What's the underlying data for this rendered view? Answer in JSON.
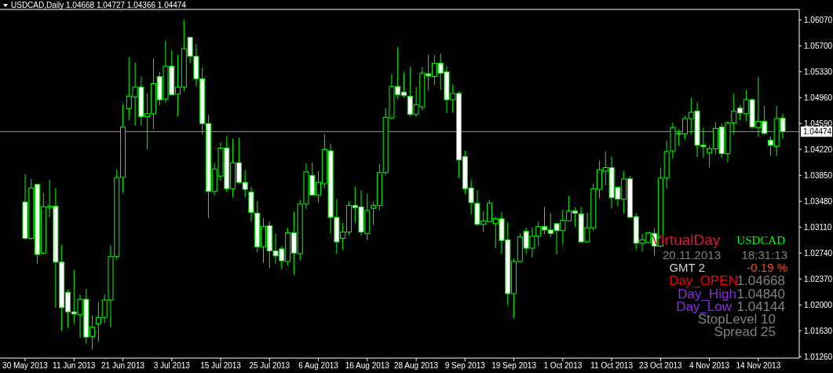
{
  "chart_data": {
    "type": "candlestick",
    "title": "USDCAD,Daily  1.04668 1.04727 1.04366 1.04474",
    "color": "#00ff00",
    "categories": [
      "30 May 2013",
      null,
      null,
      null,
      null,
      null,
      null,
      null,
      "11 Jun 2013",
      null,
      null,
      null,
      null,
      null,
      null,
      null,
      "21 Jun 2013",
      null,
      null,
      null,
      null,
      null,
      null,
      null,
      "3 Jul 2013",
      null,
      null,
      null,
      null,
      null,
      null,
      null,
      "15 Jul 2013",
      null,
      null,
      null,
      null,
      null,
      null,
      null,
      "25 Jul 2013",
      null,
      null,
      null,
      null,
      null,
      null,
      null,
      "6 Aug 2013",
      null,
      null,
      null,
      null,
      null,
      null,
      null,
      "16 Aug 2013",
      null,
      null,
      null,
      null,
      null,
      null,
      null,
      "28 Aug 2013",
      null,
      null,
      null,
      null,
      null,
      null,
      null,
      "9 Sep 2013",
      null,
      null,
      null,
      null,
      null,
      null,
      null,
      "19 Sep 2013",
      null,
      null,
      null,
      null,
      null,
      null,
      null,
      "1 Oct 2013",
      null,
      null,
      null,
      null,
      null,
      null,
      null,
      "11 Oct 2013",
      null,
      null,
      null,
      null,
      null,
      null,
      null,
      "23 Oct 2013",
      null,
      null,
      null,
      null,
      null,
      null,
      null,
      "4 Nov 2013",
      null,
      null,
      null,
      null,
      null,
      null,
      null,
      "14 Nov 2013",
      null,
      null,
      null,
      null
    ],
    "ohlc": [
      [
        1.0347,
        1.0387,
        1.0293,
        1.0295
      ],
      [
        1.0295,
        1.038,
        1.0293,
        1.0367
      ],
      [
        1.0372,
        1.0373,
        1.0259,
        1.0272
      ],
      [
        1.0274,
        1.036,
        1.0272,
        1.034
      ],
      [
        1.0339,
        1.0379,
        1.0325,
        1.0341
      ],
      [
        1.0341,
        1.0367,
        1.0196,
        1.0261
      ],
      [
        1.0261,
        1.0286,
        1.0162,
        1.0196
      ],
      [
        1.0218,
        1.0222,
        1.0167,
        1.019
      ],
      [
        1.019,
        1.025,
        1.0173,
        1.0187
      ],
      [
        1.0186,
        1.0215,
        1.0153,
        1.0208
      ],
      [
        1.0208,
        1.0223,
        1.0145,
        1.0154
      ],
      [
        1.0155,
        1.0185,
        1.0136,
        1.0168
      ],
      [
        1.0173,
        1.0204,
        1.0147,
        1.0182
      ],
      [
        1.0182,
        1.0215,
        1.0174,
        1.0207
      ],
      [
        1.0207,
        1.0285,
        1.0168,
        1.0269
      ],
      [
        1.0269,
        1.0393,
        1.0265,
        1.0382
      ],
      [
        1.0382,
        1.0487,
        1.036,
        1.0454
      ],
      [
        1.048,
        1.0554,
        1.0464,
        1.0498
      ],
      [
        1.0497,
        1.0546,
        1.0456,
        1.0511
      ],
      [
        1.0511,
        1.0526,
        1.0456,
        1.0469
      ],
      [
        1.0469,
        1.0502,
        1.0422,
        1.0473
      ],
      [
        1.0473,
        1.0552,
        1.0451,
        1.0516
      ],
      [
        1.0526,
        1.0533,
        1.0485,
        1.0493
      ],
      [
        1.0494,
        1.0577,
        1.0489,
        1.0541
      ],
      [
        1.0541,
        1.0563,
        1.0499,
        1.05
      ],
      [
        1.0501,
        1.0557,
        1.0469,
        1.0511
      ],
      [
        1.0511,
        1.0607,
        1.0505,
        1.0566
      ],
      [
        1.0582,
        1.0583,
        1.0545,
        1.0555
      ],
      [
        1.0555,
        1.0572,
        1.0512,
        1.0523
      ],
      [
        1.0523,
        1.0539,
        1.0444,
        1.0459
      ],
      [
        1.0459,
        1.0471,
        1.0324,
        1.0362
      ],
      [
        1.0362,
        1.0403,
        1.0356,
        1.0394
      ],
      [
        1.0384,
        1.0432,
        1.0377,
        1.0424
      ],
      [
        1.0424,
        1.0441,
        1.0361,
        1.0366
      ],
      [
        1.0366,
        1.0437,
        1.0354,
        1.0403
      ],
      [
        1.0403,
        1.0439,
        1.0373,
        1.0375
      ],
      [
        1.0375,
        1.0393,
        1.0354,
        1.0365
      ],
      [
        1.0361,
        1.0369,
        1.0319,
        1.0332
      ],
      [
        1.0331,
        1.0348,
        1.0275,
        1.0283
      ],
      [
        1.0283,
        1.0324,
        1.026,
        1.0312
      ],
      [
        1.0313,
        1.0319,
        1.0253,
        1.0277
      ],
      [
        1.0277,
        1.0302,
        1.0259,
        1.027
      ],
      [
        1.028,
        1.0284,
        1.0251,
        1.0263
      ],
      [
        1.0262,
        1.031,
        1.0256,
        1.0303
      ],
      [
        1.0303,
        1.0333,
        1.0244,
        1.0274
      ],
      [
        1.0273,
        1.035,
        1.0263,
        1.0344
      ],
      [
        1.0344,
        1.0402,
        1.0337,
        1.039
      ],
      [
        1.0385,
        1.0403,
        1.0356,
        1.0357
      ],
      [
        1.0357,
        1.0391,
        1.0346,
        1.0375
      ],
      [
        1.0373,
        1.0444,
        1.0366,
        1.0422
      ],
      [
        1.042,
        1.043,
        1.0302,
        1.0325
      ],
      [
        1.0325,
        1.0351,
        1.0273,
        1.029
      ],
      [
        1.0295,
        1.0317,
        1.0279,
        1.0304
      ],
      [
        1.0304,
        1.0348,
        1.03,
        1.0342
      ],
      [
        1.0342,
        1.0369,
        1.0317,
        1.0339
      ],
      [
        1.034,
        1.0363,
        1.0299,
        1.0304
      ],
      [
        1.0302,
        1.0359,
        1.0292,
        1.0335
      ],
      [
        1.0338,
        1.0347,
        1.0314,
        1.0342
      ],
      [
        1.0342,
        1.0401,
        1.0335,
        1.0389
      ],
      [
        1.0389,
        1.0481,
        1.0385,
        1.0468
      ],
      [
        1.0467,
        1.053,
        1.0465,
        1.0512
      ],
      [
        1.0512,
        1.0568,
        1.0494,
        1.05
      ],
      [
        1.0504,
        1.0532,
        1.0496,
        1.0499
      ],
      [
        1.0498,
        1.054,
        1.0469,
        1.0472
      ],
      [
        1.0472,
        1.0511,
        1.0469,
        1.0486
      ],
      [
        1.0483,
        1.054,
        1.0478,
        1.0531
      ],
      [
        1.053,
        1.0557,
        1.0506,
        1.0527
      ],
      [
        1.0526,
        1.0557,
        1.0514,
        1.0545
      ],
      [
        1.0545,
        1.0559,
        1.0507,
        1.0531
      ],
      [
        1.0533,
        1.0541,
        1.0474,
        1.0493
      ],
      [
        1.0493,
        1.0515,
        1.0475,
        1.0502
      ],
      [
        1.0502,
        1.0505,
        1.0381,
        1.0407
      ],
      [
        1.0412,
        1.042,
        1.0358,
        1.0366
      ],
      [
        1.0367,
        1.0379,
        1.0329,
        1.0346
      ],
      [
        1.0345,
        1.0364,
        1.0313,
        1.0315
      ],
      [
        1.0315,
        1.0334,
        1.0304,
        1.032
      ],
      [
        1.0319,
        1.035,
        1.0318,
        1.0345
      ],
      [
        1.0316,
        1.0326,
        1.0281,
        1.0323
      ],
      [
        1.0323,
        1.0333,
        1.0273,
        1.0292
      ],
      [
        1.0293,
        1.0318,
        1.0199,
        1.0216
      ],
      [
        1.0216,
        1.0266,
        1.0181,
        1.0262
      ],
      [
        1.0262,
        1.0302,
        1.026,
        1.0297
      ],
      [
        1.0305,
        1.031,
        1.0273,
        1.0281
      ],
      [
        1.0281,
        1.031,
        1.0268,
        1.0298
      ],
      [
        1.0298,
        1.0319,
        1.0284,
        1.0312
      ],
      [
        1.0312,
        1.034,
        1.0301,
        1.0307
      ],
      [
        1.0307,
        1.0331,
        1.0297,
        1.0302
      ],
      [
        1.0316,
        1.0317,
        1.0272,
        1.0306
      ],
      [
        1.0306,
        1.0336,
        1.0286,
        1.0321
      ],
      [
        1.032,
        1.0356,
        1.0319,
        1.0334
      ],
      [
        1.0334,
        1.0339,
        1.0311,
        1.0331
      ],
      [
        1.033,
        1.034,
        1.0289,
        1.029
      ],
      [
        1.029,
        1.0332,
        1.0289,
        1.031
      ],
      [
        1.031,
        1.0373,
        1.0306,
        1.0366
      ],
      [
        1.0365,
        1.0406,
        1.0352,
        1.0393
      ],
      [
        1.0391,
        1.0419,
        1.0371,
        1.0396
      ],
      [
        1.0396,
        1.0412,
        1.0338,
        1.0353
      ],
      [
        1.0368,
        1.0369,
        1.0341,
        1.0351
      ],
      [
        1.0351,
        1.0391,
        1.033,
        1.038
      ],
      [
        1.038,
        1.0384,
        1.0324,
        1.0325
      ],
      [
        1.0326,
        1.0331,
        1.0279,
        1.0288
      ],
      [
        1.0288,
        1.0301,
        1.0276,
        1.0293
      ],
      [
        1.0289,
        1.0304,
        1.0288,
        1.0303
      ],
      [
        1.0302,
        1.0309,
        1.027,
        1.0284
      ],
      [
        1.0284,
        1.0396,
        1.0282,
        1.0381
      ],
      [
        1.0381,
        1.0435,
        1.0366,
        1.0419
      ],
      [
        1.042,
        1.046,
        1.0409,
        1.0453
      ],
      [
        1.0444,
        1.0451,
        1.0427,
        1.0445
      ],
      [
        1.0444,
        1.047,
        1.0437,
        1.0466
      ],
      [
        1.0466,
        1.0496,
        1.0444,
        1.0475
      ],
      [
        1.0477,
        1.0489,
        1.0411,
        1.0428
      ],
      [
        1.0428,
        1.0453,
        1.041,
        1.0426
      ],
      [
        1.0417,
        1.0427,
        1.0396,
        1.0423
      ],
      [
        1.0423,
        1.0461,
        1.0415,
        1.0452
      ],
      [
        1.0454,
        1.0459,
        1.041,
        1.0416
      ],
      [
        1.0416,
        1.0462,
        1.0404,
        1.046
      ],
      [
        1.046,
        1.0502,
        1.0444,
        1.0477
      ],
      [
        1.0481,
        1.0485,
        1.0464,
        1.0474
      ],
      [
        1.0473,
        1.0507,
        1.0463,
        1.0493
      ],
      [
        1.0493,
        1.0495,
        1.0451,
        1.0454
      ],
      [
        1.0453,
        1.0525,
        1.044,
        1.0462
      ],
      [
        1.0462,
        1.0484,
        1.0443,
        1.0445
      ],
      [
        1.0435,
        1.044,
        1.0413,
        1.0428
      ],
      [
        1.0426,
        1.0484,
        1.0413,
        1.0466
      ],
      [
        1.04668,
        1.04727,
        1.04366,
        1.04474
      ]
    ],
    "ylim": [
      1.0124,
      1.0622
    ],
    "yticks": [
      {
        "value": 1.0607,
        "label": "1.06070"
      },
      {
        "value": 1.057,
        "label": "1.05700"
      },
      {
        "value": 1.0533,
        "label": "1.05330"
      },
      {
        "value": 1.0496,
        "label": "1.04960"
      },
      {
        "value": 1.0459,
        "label": "1.04590"
      },
      {
        "value": 1.0422,
        "label": "1.04220"
      },
      {
        "value": 1.0385,
        "label": "1.03850"
      },
      {
        "value": 1.0348,
        "label": "1.03480"
      },
      {
        "value": 1.0311,
        "label": "1.03110"
      },
      {
        "value": 1.0274,
        "label": "1.02740"
      },
      {
        "value": 1.0237,
        "label": "1.02370"
      },
      {
        "value": 1.02,
        "label": "1.02000"
      },
      {
        "value": 1.0163,
        "label": "1.01630"
      },
      {
        "value": 1.0126,
        "label": "1.01260"
      }
    ],
    "ref_lines": [
      {
        "axis": "y",
        "value": 1.04474,
        "label": "1.04474",
        "color": "#8c9aab"
      }
    ],
    "annotations": [
      "VirtualDay",
      "USDCAD",
      "20.11.2013",
      "18:31:13",
      "GMT 2",
      "-0.19 %",
      "Day_OPEN",
      "1.04668",
      "Day_High",
      "1.04840",
      "Day_Low",
      "1.04144",
      "StopLevel 10",
      "Spread  25"
    ]
  }
}
